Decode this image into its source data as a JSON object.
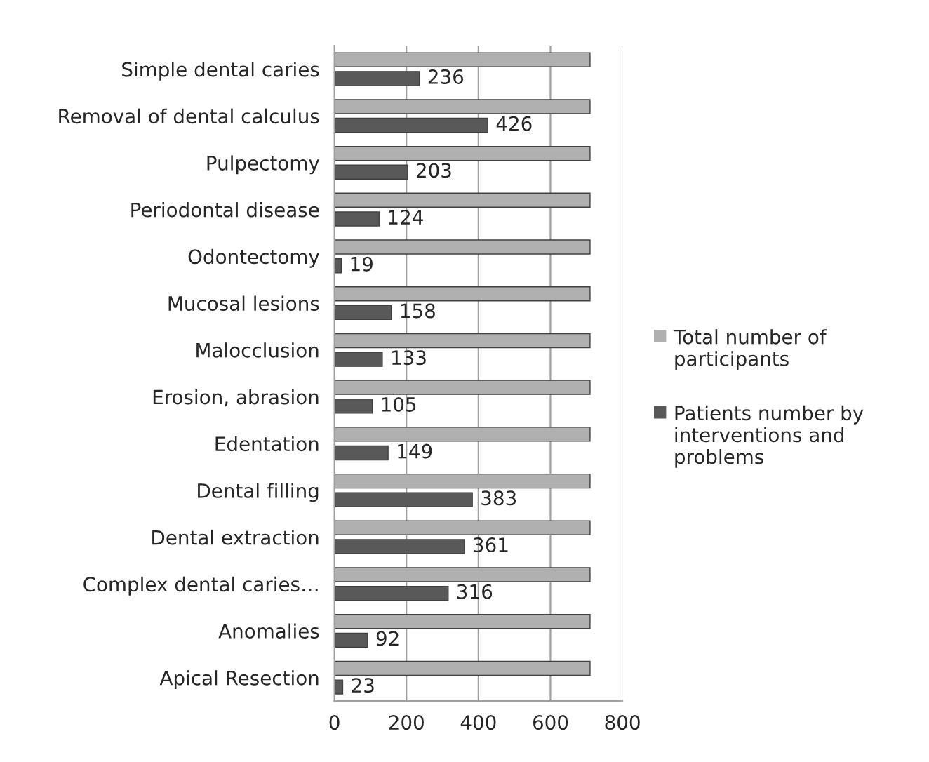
{
  "chart_data": {
    "type": "bar",
    "orientation": "horizontal",
    "categories": [
      "Simple dental caries",
      "Removal of dental calculus",
      "Pulpectomy",
      "Periodontal disease",
      "Odontectomy",
      "Mucosal lesions",
      "Malocclusion",
      "Erosion, abrasion",
      "Edentation",
      "Dental filling",
      "Dental extraction",
      "Complex dental caries…",
      "Anomalies",
      "Apical Resection"
    ],
    "series": [
      {
        "name": "Total number of participants",
        "color": "#b0b0b0",
        "values": [
          710,
          710,
          710,
          710,
          710,
          710,
          710,
          710,
          710,
          710,
          710,
          710,
          710,
          710
        ]
      },
      {
        "name": "Patients number by interventions and problems",
        "color": "#595959",
        "values": [
          236,
          426,
          203,
          124,
          19,
          158,
          133,
          105,
          149,
          383,
          361,
          316,
          92,
          23
        ],
        "value_labels": [
          "236",
          "426",
          "203",
          "124",
          "19",
          "158",
          "133",
          "105",
          "149",
          "383",
          "361",
          "316",
          "92",
          "23"
        ]
      }
    ],
    "xlim": [
      0,
      800
    ],
    "xticks": [
      0,
      200,
      400,
      600,
      800
    ],
    "grid": "x",
    "legend": "right"
  }
}
